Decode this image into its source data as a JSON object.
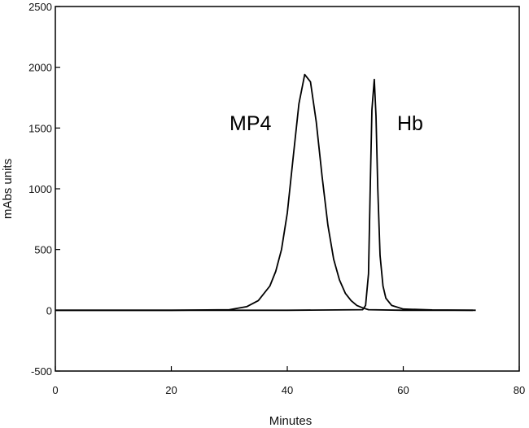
{
  "chart_data": {
    "type": "line",
    "title": "",
    "xlabel": "Minutes",
    "ylabel": "mAbs units",
    "xlim": [
      0,
      80
    ],
    "ylim": [
      -500,
      2500
    ],
    "x_ticks": [
      "0",
      "20",
      "40",
      "60",
      "80"
    ],
    "y_ticks": [
      "-500",
      "0",
      "500",
      "1000",
      "1500",
      "2000",
      "2500"
    ],
    "grid": false,
    "legend": "none",
    "line_color": "#000000",
    "series": [
      {
        "x": [
          0,
          10,
          20,
          30,
          33,
          35,
          37,
          38,
          39,
          40,
          41,
          42,
          43,
          44,
          45,
          46,
          47,
          48,
          49,
          50,
          51,
          52,
          53,
          54,
          60,
          72
        ],
        "y": [
          0,
          0,
          0,
          5,
          30,
          80,
          200,
          320,
          500,
          800,
          1250,
          1700,
          1940,
          1880,
          1550,
          1100,
          700,
          420,
          250,
          140,
          80,
          40,
          20,
          5,
          0,
          0
        ]
      },
      {
        "x": [
          0,
          20,
          40,
          53,
          53.5,
          54,
          54.3,
          54.6,
          55,
          55.3,
          55.6,
          56,
          56.5,
          57,
          58,
          60,
          65,
          72.5
        ],
        "y": [
          0,
          0,
          0,
          5,
          40,
          300,
          1000,
          1650,
          1900,
          1600,
          1000,
          450,
          200,
          100,
          40,
          10,
          3,
          0
        ]
      }
    ],
    "annotations": [
      "MP4",
      "Hb"
    ]
  }
}
